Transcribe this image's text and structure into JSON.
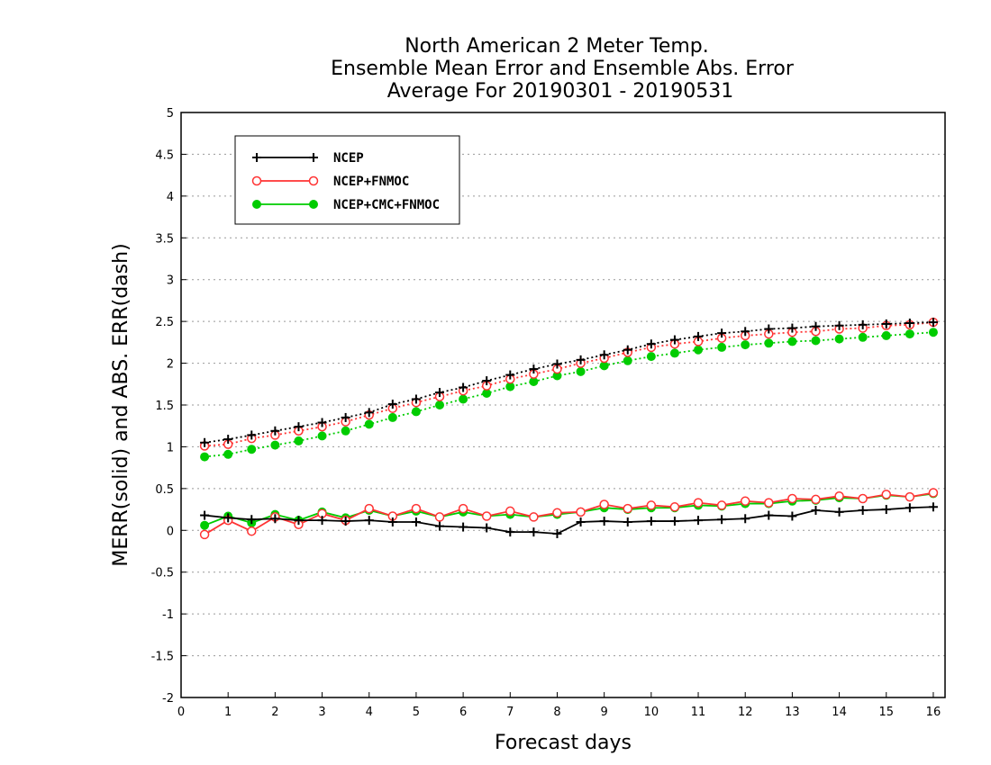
{
  "chart_data": {
    "type": "line",
    "title_lines": [
      "North American 2 Meter Temp.",
      "Ensemble Mean Error and Ensemble Abs. Error",
      "Average For 20190301 - 20190531"
    ],
    "xlabel": "Forecast days",
    "ylabel": "MERR(solid) and ABS. ERR(dash)",
    "xlim": [
      0,
      16.25
    ],
    "ylim": [
      -2,
      5
    ],
    "x_ticks": [
      "0",
      "1",
      "2",
      "3",
      "4",
      "5",
      "6",
      "7",
      "8",
      "9",
      "10",
      "11",
      "12",
      "13",
      "14",
      "15",
      "16"
    ],
    "y_ticks": [
      "5",
      "4.5",
      "4",
      "3.5",
      "3",
      "2.5",
      "2",
      "1.5",
      "1",
      "0.5",
      "0",
      "-0.5",
      "-1",
      "-1.5",
      "-2"
    ],
    "grid": true,
    "legend_position": "top-left",
    "x": [
      0.5,
      1,
      1.5,
      2,
      2.5,
      3,
      3.5,
      4,
      4.5,
      5,
      5.5,
      6,
      6.5,
      7,
      7.5,
      8,
      8.5,
      9,
      9.5,
      10,
      10.5,
      11,
      11.5,
      12,
      12.5,
      13,
      13.5,
      14,
      14.5,
      15,
      15.5,
      16
    ],
    "series": [
      {
        "name": "NCEP",
        "color": "#000000",
        "marker": "plus",
        "merr": [
          0.18,
          0.15,
          0.13,
          0.14,
          0.12,
          0.12,
          0.11,
          0.12,
          0.1,
          0.1,
          0.05,
          0.04,
          0.03,
          -0.02,
          -0.02,
          -0.04,
          0.1,
          0.11,
          0.1,
          0.11,
          0.11,
          0.12,
          0.13,
          0.14,
          0.18,
          0.17,
          0.24,
          0.22,
          0.24,
          0.25,
          0.27,
          0.28
        ],
        "abserr": [
          1.05,
          1.09,
          1.14,
          1.19,
          1.24,
          1.29,
          1.35,
          1.41,
          1.51,
          1.57,
          1.65,
          1.71,
          1.79,
          1.86,
          1.93,
          1.99,
          2.04,
          2.1,
          2.16,
          2.23,
          2.28,
          2.32,
          2.36,
          2.38,
          2.41,
          2.42,
          2.44,
          2.45,
          2.46,
          2.47,
          2.48,
          2.49
        ]
      },
      {
        "name": "NCEP+FNMOC",
        "color": "#ff3333",
        "marker": "open-circle",
        "merr": [
          -0.05,
          0.12,
          -0.01,
          0.16,
          0.07,
          0.2,
          0.12,
          0.26,
          0.17,
          0.26,
          0.16,
          0.26,
          0.17,
          0.23,
          0.16,
          0.21,
          0.22,
          0.31,
          0.26,
          0.3,
          0.28,
          0.33,
          0.3,
          0.35,
          0.33,
          0.38,
          0.37,
          0.41,
          0.38,
          0.43,
          0.4,
          0.45
        ],
        "abserr": [
          1.01,
          1.03,
          1.1,
          1.14,
          1.19,
          1.24,
          1.3,
          1.38,
          1.46,
          1.53,
          1.6,
          1.67,
          1.73,
          1.81,
          1.87,
          1.93,
          2.0,
          2.06,
          2.13,
          2.19,
          2.23,
          2.26,
          2.3,
          2.33,
          2.35,
          2.37,
          2.38,
          2.41,
          2.42,
          2.45,
          2.46,
          2.49
        ]
      },
      {
        "name": "NCEP+CMC+FNMOC",
        "color": "#00cc00",
        "marker": "filled-circle",
        "merr": [
          0.06,
          0.17,
          0.09,
          0.19,
          0.12,
          0.22,
          0.15,
          0.24,
          0.17,
          0.23,
          0.16,
          0.22,
          0.17,
          0.19,
          0.16,
          0.19,
          0.22,
          0.27,
          0.25,
          0.27,
          0.27,
          0.3,
          0.29,
          0.32,
          0.32,
          0.35,
          0.36,
          0.39,
          0.38,
          0.42,
          0.4,
          0.44
        ],
        "abserr": [
          0.88,
          0.91,
          0.97,
          1.02,
          1.07,
          1.13,
          1.19,
          1.27,
          1.35,
          1.42,
          1.5,
          1.57,
          1.64,
          1.72,
          1.78,
          1.85,
          1.9,
          1.97,
          2.03,
          2.08,
          2.12,
          2.16,
          2.19,
          2.22,
          2.24,
          2.26,
          2.27,
          2.29,
          2.31,
          2.33,
          2.35,
          2.37
        ]
      }
    ]
  }
}
